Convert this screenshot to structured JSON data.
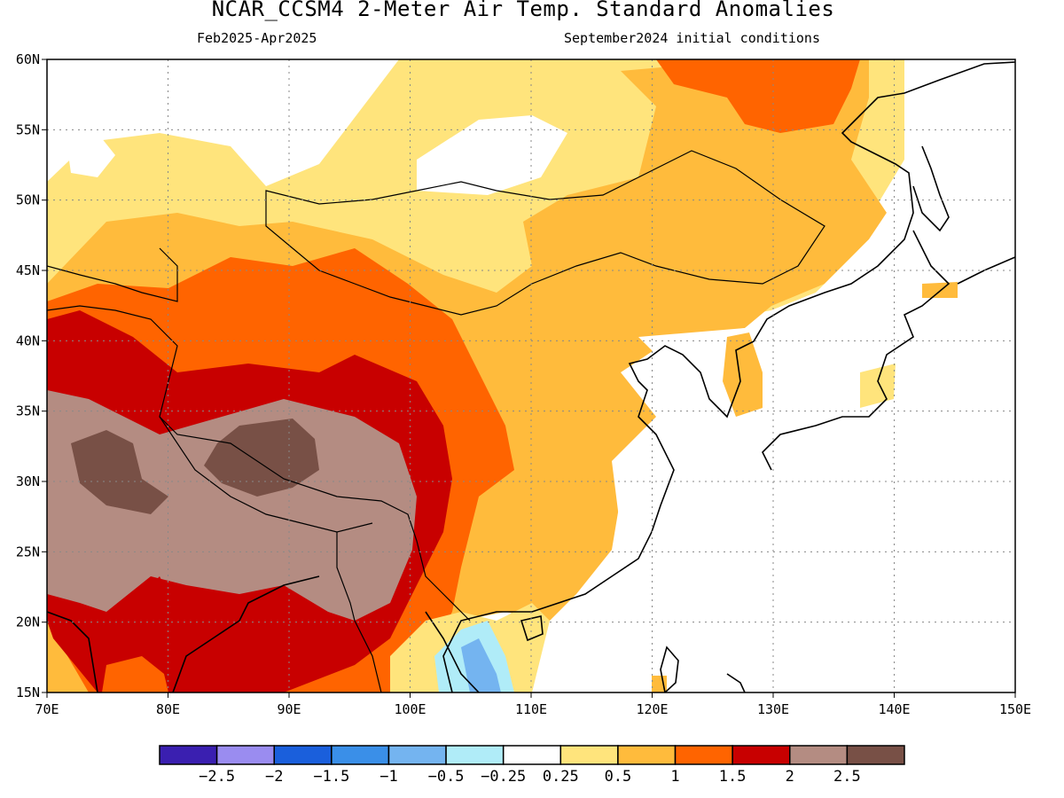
{
  "title": "NCAR_CCSM4 2-Meter Air Temp. Standard Anomalies",
  "subtitle_left": "Feb2025-Apr2025",
  "subtitle_right": "September2024 initial conditions",
  "map": {
    "lon_range": [
      70,
      150
    ],
    "lat_range": [
      15,
      60
    ],
    "lon_ticks": [
      {
        "v": 70,
        "label": "70E"
      },
      {
        "v": 80,
        "label": "80E"
      },
      {
        "v": 90,
        "label": "90E"
      },
      {
        "v": 100,
        "label": "100E"
      },
      {
        "v": 110,
        "label": "110E"
      },
      {
        "v": 120,
        "label": "120E"
      },
      {
        "v": 130,
        "label": "130E"
      },
      {
        "v": 140,
        "label": "140E"
      },
      {
        "v": 150,
        "label": "150E"
      }
    ],
    "lat_ticks": [
      {
        "v": 15,
        "label": "15N"
      },
      {
        "v": 20,
        "label": "20N"
      },
      {
        "v": 25,
        "label": "25N"
      },
      {
        "v": 30,
        "label": "30N"
      },
      {
        "v": 35,
        "label": "35N"
      },
      {
        "v": 40,
        "label": "40N"
      },
      {
        "v": 45,
        "label": "45N"
      },
      {
        "v": 50,
        "label": "50N"
      },
      {
        "v": 55,
        "label": "55N"
      },
      {
        "v": 60,
        "label": "60N"
      }
    ],
    "grid": true
  },
  "colorbar": {
    "colors": [
      "#3a1fb0",
      "#9a8cf0",
      "#1a5fdc",
      "#3a8fe8",
      "#74b4f0",
      "#b0ecf8",
      "#ffffff",
      "#ffe47c",
      "#ffbb3c",
      "#ff6400",
      "#c80000",
      "#b48c82",
      "#785046"
    ],
    "labels": [
      "-2.5",
      "-2",
      "-1.5",
      "-1",
      "-0.5",
      "-0.25",
      "0.25",
      "0.5",
      "1",
      "1.5",
      "2",
      "2.5"
    ]
  },
  "colors": {
    "land_light": "#ffe47c",
    "land_mid": "#ffbb3c",
    "land_orange": "#ff6400",
    "land_red": "#c80000",
    "land_brown": "#b48c82",
    "land_darkbrown": "#785046",
    "land_blue": "#74b4f0",
    "land_cyan": "#b0ecf8"
  }
}
